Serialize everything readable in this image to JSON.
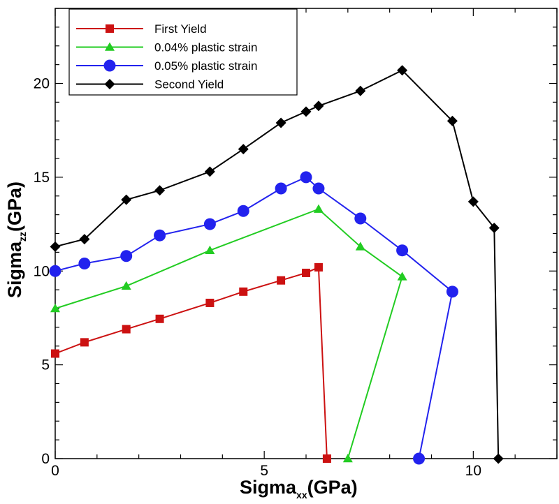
{
  "chart_data": {
    "type": "line",
    "xlabel": {
      "base": "Sigma",
      "sub": "xx",
      "suffix": "(GPa)"
    },
    "ylabel": {
      "base": "Sigma",
      "sub": "zz",
      "suffix": "(GPa)"
    },
    "xlim": [
      0,
      12
    ],
    "ylim": [
      0,
      24
    ],
    "xticks": [
      0,
      5,
      10
    ],
    "yticks": [
      0,
      5,
      10,
      15,
      20
    ],
    "grid": false,
    "legend_position": "top-left",
    "series": [
      {
        "name": "First Yield",
        "color": "#cc1111",
        "marker": "square",
        "x": [
          0,
          0.7,
          1.7,
          2.5,
          3.7,
          4.5,
          5.4,
          6.0,
          6.3,
          6.5
        ],
        "y": [
          5.6,
          6.2,
          6.9,
          7.45,
          8.3,
          8.9,
          9.5,
          9.9,
          10.2,
          0
        ]
      },
      {
        "name": "0.04%  plastic strain",
        "color": "#22cc22",
        "marker": "triangle",
        "x": [
          0,
          1.7,
          3.7,
          6.3,
          7.3,
          8.3,
          7.0
        ],
        "y": [
          8.0,
          9.2,
          11.1,
          13.3,
          11.3,
          9.7,
          0
        ]
      },
      {
        "name": "0.05%  plastic strain",
        "color": "#2222ee",
        "marker": "circle",
        "x": [
          0,
          0.7,
          1.7,
          2.5,
          3.7,
          4.5,
          5.4,
          6.0,
          6.3,
          7.3,
          8.3,
          9.5,
          8.7
        ],
        "y": [
          10.0,
          10.4,
          10.8,
          11.9,
          12.5,
          13.2,
          14.4,
          15.0,
          14.4,
          12.8,
          11.1,
          8.9,
          0
        ]
      },
      {
        "name": "Second Yield",
        "color": "#000000",
        "marker": "diamond",
        "x": [
          0,
          0.7,
          1.7,
          2.5,
          3.7,
          4.5,
          5.4,
          6.0,
          6.3,
          7.3,
          8.3,
          9.5,
          10.0,
          10.5,
          10.6
        ],
        "y": [
          11.3,
          11.7,
          13.8,
          14.3,
          15.3,
          16.5,
          17.9,
          18.5,
          18.8,
          19.6,
          20.7,
          18.0,
          13.7,
          12.3,
          0
        ]
      }
    ]
  }
}
